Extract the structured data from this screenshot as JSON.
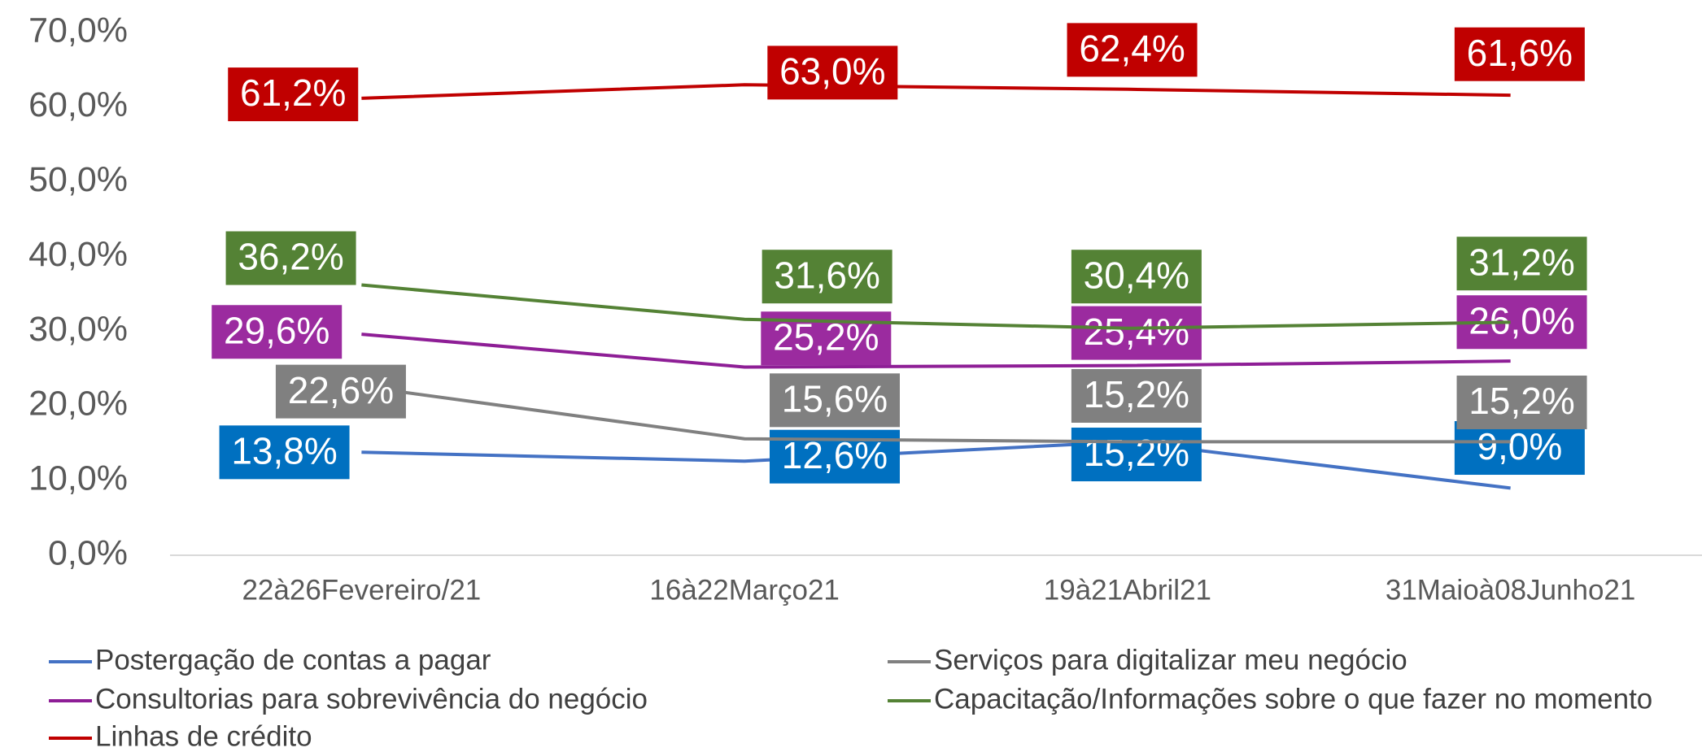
{
  "chart_data": {
    "type": "line",
    "categories": [
      "22à26Fevereiro/21",
      "16à22Março21",
      "19à21Abril21",
      "31Maioà08Junho21"
    ],
    "series": [
      {
        "name": "Postergação de contas a pagar",
        "color": "#4472c4",
        "label_color": "#0070c0",
        "values": [
          13.8,
          12.6,
          15.2,
          9.0
        ],
        "value_labels": [
          "13,8%",
          "12,6%",
          "15,2%",
          "9,0%"
        ]
      },
      {
        "name": "Serviços para digitalizar meu negócio",
        "color": "#808080",
        "label_color": "#808080",
        "values": [
          22.6,
          15.6,
          15.2,
          15.2
        ],
        "value_labels": [
          "22,6%",
          "15,6%",
          "15,2%",
          "15,2%"
        ]
      },
      {
        "name": "Consultorias para sobrevivência do negócio",
        "color": "#8e1e96",
        "label_color": "#9b2b9f",
        "values": [
          29.6,
          25.2,
          25.4,
          26.0
        ],
        "value_labels": [
          "29,6%",
          "25,2%",
          "25,4%",
          "26,0%"
        ]
      },
      {
        "name": "Capacitação/Informações sobre o que fazer no momento",
        "color": "#548235",
        "label_color": "#548235",
        "values": [
          36.2,
          31.6,
          30.4,
          31.2
        ],
        "value_labels": [
          "36,2%",
          "31,6%",
          "30,4%",
          "31,2%"
        ]
      },
      {
        "name": "Linhas de crédito",
        "color": "#c00000",
        "label_color": "#c00000",
        "values": [
          61.2,
          63.0,
          62.4,
          61.6
        ],
        "value_labels": [
          "61,2%",
          "63,0%",
          "62,4%",
          "61,6%"
        ]
      }
    ],
    "ylim": [
      0,
      70
    ],
    "yticks": [
      {
        "value": 0,
        "label": "0,0%"
      },
      {
        "value": 10,
        "label": "10,0%"
      },
      {
        "value": 20,
        "label": "20,0%"
      },
      {
        "value": 30,
        "label": "30,0%"
      },
      {
        "value": 40,
        "label": "40,0%"
      },
      {
        "value": 50,
        "label": "50,0%"
      },
      {
        "value": 60,
        "label": "60,0%"
      },
      {
        "value": 70,
        "label": "70,0%"
      }
    ],
    "legend": "bottom"
  }
}
